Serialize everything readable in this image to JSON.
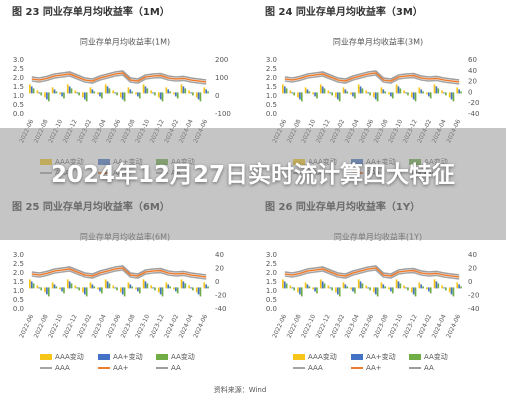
{
  "panels": [
    {
      "figure": "图 23  同业存单月均收益率（1M）",
      "subtitle": "同业存单月均收益率(1M)",
      "left_ticks": [
        "3.0",
        "2.5",
        "2.0",
        "1.5",
        "1.0",
        "0.5",
        "0.0"
      ],
      "right_ticks": [
        "200",
        "100",
        "0",
        "-100"
      ],
      "x_labels": [
        "2022-06",
        "2022-08",
        "2022-10",
        "2022-12",
        "2023-02",
        "2023-04",
        "2023-06",
        "2023-08",
        "2023-10",
        "2023-12",
        "2024-02",
        "2024-04",
        "2024-06"
      ]
    },
    {
      "figure": "图 24  同业存单月均收益率（3M）",
      "subtitle": "同业存单月均收益率(3M)",
      "left_ticks": [
        "3.0",
        "2.5",
        "2.0",
        "1.5",
        "1.0",
        "0.5",
        "0.0"
      ],
      "right_ticks": [
        "60",
        "40",
        "20",
        "0",
        "-20",
        "-40"
      ],
      "x_labels": [
        "2022-06",
        "2022-08",
        "2022-10",
        "2022-12",
        "2023-02",
        "2023-04",
        "2023-06",
        "2023-08",
        "2023-10",
        "2023-12",
        "2024-02",
        "2024-04",
        "2024-06"
      ]
    },
    {
      "figure": "图 25  同业存单月均收益率（6M）",
      "subtitle": "同业存单月均收益率(6M)",
      "left_ticks": [
        "3.0",
        "2.5",
        "2.0",
        "1.5",
        "1.0",
        "0.5",
        "0.0"
      ],
      "right_ticks": [
        "40",
        "20",
        "0",
        "-20",
        "-40"
      ],
      "x_labels": [
        "2022-06",
        "2022-08",
        "2022-10",
        "2022-12",
        "2023-02",
        "2023-04",
        "2023-06",
        "2023-08",
        "2023-10",
        "2023-12",
        "2024-02",
        "2024-04",
        "2024-06"
      ]
    },
    {
      "figure": "图 26  同业存单月均收益率（1Y）",
      "subtitle": "同业存单月均收益率(1Y)",
      "left_ticks": [
        "3.0",
        "2.5",
        "2.0",
        "1.5",
        "1.0",
        "0.5",
        "0.0"
      ],
      "right_ticks": [
        "40",
        "20",
        "0",
        "-20",
        "-40"
      ],
      "x_labels": [
        "2022-06",
        "2022-08",
        "2022-10",
        "2022-12",
        "2023-02",
        "2023-04",
        "2023-06",
        "2023-08",
        "2023-10",
        "2023-12",
        "2024-02",
        "2024-04",
        "2024-06"
      ]
    }
  ],
  "legend": [
    {
      "label": "AAA变动",
      "color": "#f5c518",
      "kind": "bar"
    },
    {
      "label": "AA+变动",
      "color": "#4472c4",
      "kind": "bar"
    },
    {
      "label": "AA变动",
      "color": "#70ad47",
      "kind": "bar"
    },
    {
      "label": "AAA",
      "color": "#a5a5a5",
      "kind": "line"
    },
    {
      "label": "AA+",
      "color": "#ed7d31",
      "kind": "line"
    },
    {
      "label": "AA",
      "color": "#9e9e9e",
      "kind": "line"
    }
  ],
  "overlay_title": "2024年12月27日实时流计算四大特征",
  "source": "资料来源：Wind"
}
